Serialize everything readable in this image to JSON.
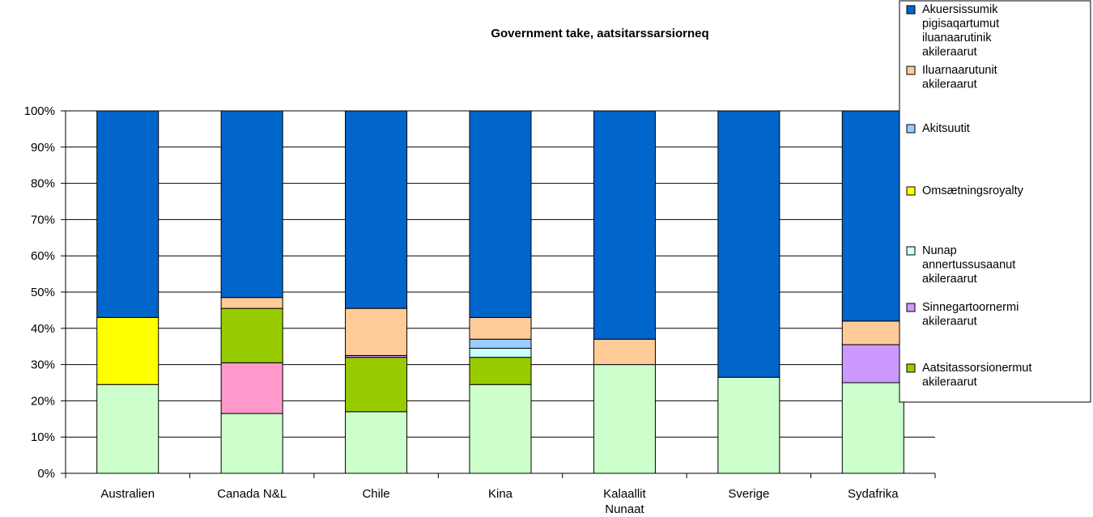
{
  "chart_data": {
    "type": "stacked-bar-100",
    "title": "Government take, aatsitarssarsiorneq",
    "categories": [
      "Australien",
      "Canada N&L",
      "Chile",
      "Kina",
      "Kalaallit Nunaat",
      "Sverige",
      "Sydafrika"
    ],
    "y_ticks": [
      "0%",
      "10%",
      "20%",
      "30%",
      "40%",
      "50%",
      "60%",
      "70%",
      "80%",
      "90%",
      "100%"
    ],
    "ylim": [
      0,
      100
    ],
    "grid": "horizontal",
    "legend_position": "right",
    "series": [
      {
        "name": "",
        "color": "#ccffcc",
        "values": [
          24.5,
          16.5,
          17,
          24.5,
          30,
          26.5,
          25
        ]
      },
      {
        "name": "",
        "color": "#ff99cc",
        "values": [
          0,
          14,
          0,
          0,
          0,
          0,
          0
        ]
      },
      {
        "name": "Aatsitassorsionermut akileraarut",
        "color": "#99cc00",
        "values": [
          0,
          15,
          15,
          7.5,
          0,
          0,
          0
        ]
      },
      {
        "name": "Sinnegartoornermi akileraarut",
        "color": "#cc99ff",
        "values": [
          0,
          0,
          0.5,
          0,
          0,
          0,
          10.5
        ]
      },
      {
        "name": "Nunap annertussusaanut akileraarut",
        "color": "#ccffff",
        "values": [
          0,
          0,
          0,
          2.5,
          0,
          0,
          0
        ]
      },
      {
        "name": "Omsætningsroyalty",
        "color": "#ffff00",
        "values": [
          18.5,
          0,
          0,
          0,
          0,
          0,
          0
        ]
      },
      {
        "name": "Akitsuutit",
        "color": "#99ccff",
        "values": [
          0,
          0,
          0,
          2.5,
          0,
          0,
          0
        ]
      },
      {
        "name": "Iluarnaarutunit akileraarut",
        "color": "#ffcc99",
        "values": [
          0,
          3,
          13,
          6,
          7,
          0,
          6.5
        ]
      },
      {
        "name": "Akuersissumik pigisaqartumut iluanaarutinik akileraarut",
        "color": "#0066cc",
        "values": [
          57,
          51.5,
          54.5,
          57,
          63,
          73.5,
          58
        ]
      }
    ],
    "legend_order": [
      8,
      7,
      6,
      5,
      4,
      3,
      2
    ]
  }
}
